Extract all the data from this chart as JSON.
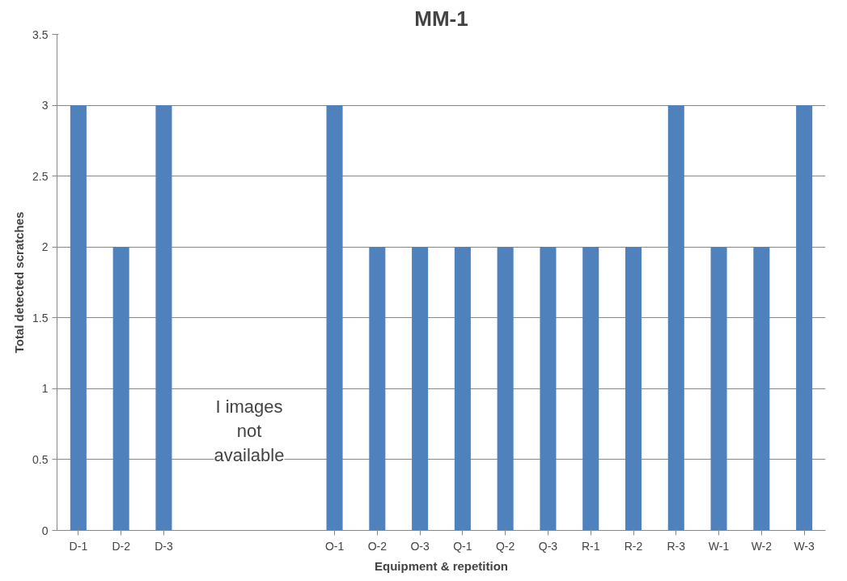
{
  "chart_data": {
    "type": "bar",
    "title": "MM-1",
    "xlabel": "Equipment & repetition",
    "ylabel": "Total detected scratches",
    "categories": [
      "D-1",
      "D-2",
      "D-3",
      null,
      null,
      null,
      "O-1",
      "O-2",
      "O-3",
      "Q-1",
      "Q-2",
      "Q-3",
      "R-1",
      "R-2",
      "R-3",
      "W-1",
      "W-2",
      "W-3"
    ],
    "values": [
      3,
      2,
      3,
      null,
      null,
      null,
      3,
      2,
      2,
      2,
      2,
      2,
      2,
      2,
      3,
      2,
      2,
      3
    ],
    "color": "#4f81bd",
    "ylim": [
      0,
      3.5
    ],
    "yticks": [
      0,
      0.5,
      1,
      1.5,
      2,
      2.5,
      3,
      3.5
    ],
    "grid": "y",
    "annotations": [
      "I images not available"
    ]
  }
}
